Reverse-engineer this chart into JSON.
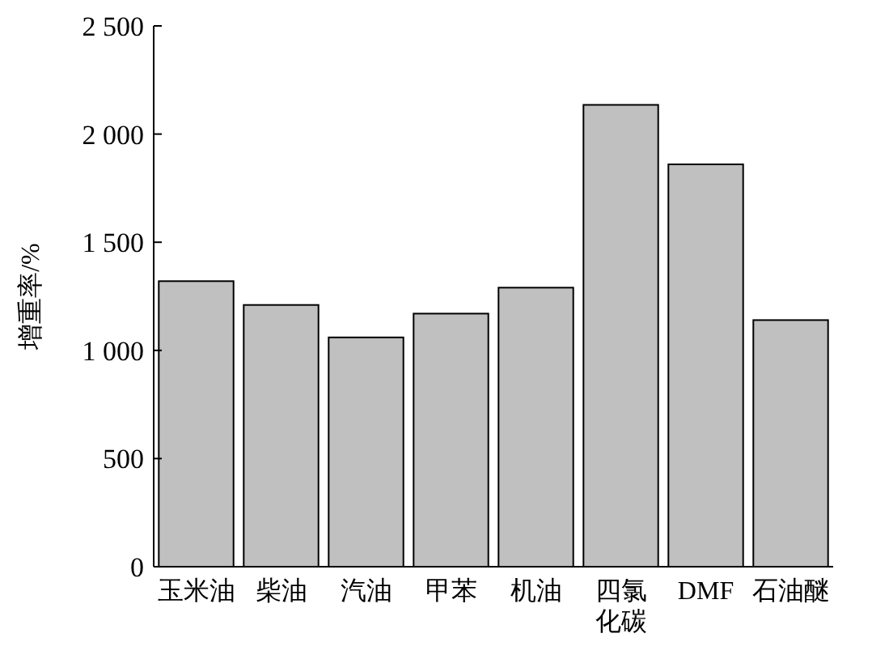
{
  "chart_data": {
    "type": "bar",
    "ylabel": "增重率/%",
    "categories": [
      "玉米油",
      "柴油",
      "汽油",
      "甲苯",
      "机油",
      "四氯化碳",
      "DMF",
      "石油醚"
    ],
    "values": [
      1320,
      1210,
      1060,
      1170,
      1290,
      2135,
      1860,
      1140
    ],
    "color": "#c0c0c0",
    "ylim": [
      0,
      2500
    ],
    "yticks": [
      {
        "value": 0,
        "label": "0"
      },
      {
        "value": 500,
        "label": "500"
      },
      {
        "value": 1000,
        "label": "1 000"
      },
      {
        "value": 1500,
        "label": "1 500"
      },
      {
        "value": 2000,
        "label": "2 000"
      },
      {
        "value": 2500,
        "label": "2 500"
      }
    ],
    "grid": false
  }
}
